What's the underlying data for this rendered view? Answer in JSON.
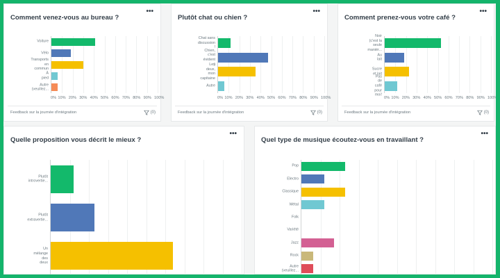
{
  "colors": {
    "frame": "#14b46b",
    "green": "#13b96b",
    "blue": "#5078b8",
    "yellow": "#f5c000",
    "teal": "#70c8d2",
    "orange": "#f58b57",
    "pink": "#d36093",
    "khaki": "#c9b87a",
    "red": "#df4d5a"
  },
  "common": {
    "more_icon": "•••",
    "footer_label": "Feedback sur la journée d'intégration",
    "filter_count": "(0)",
    "ticks": [
      "0%",
      "10%",
      "20%",
      "30%",
      "40%",
      "50%",
      "60%",
      "70%",
      "80%",
      "90%",
      "100%"
    ]
  },
  "cards": [
    {
      "title": "Comment venez-vous au bureau ?",
      "bars": [
        {
          "label": "Voiture",
          "value": 41,
          "color": "#13b96b"
        },
        {
          "label": "Vélo",
          "value": 18,
          "color": "#5078b8"
        },
        {
          "label": "Transports en commun",
          "value": 30,
          "color": "#f5c000"
        },
        {
          "label": "À pied",
          "value": 6,
          "color": "#70c8d2"
        },
        {
          "label": "Autre (veuillez...",
          "value": 6,
          "color": "#f58b57"
        }
      ]
    },
    {
      "title": "Plutôt chat ou chien ?",
      "bars": [
        {
          "label": "Chat sans discussion !",
          "value": 12,
          "color": "#13b96b"
        },
        {
          "label": "Chien, c'est évident :)",
          "value": 47,
          "color": "#5078b8"
        },
        {
          "label": "Les deux, mon capitaine",
          "value": 35,
          "color": "#f5c000"
        },
        {
          "label": "Autre",
          "value": 6,
          "color": "#70c8d2"
        }
      ]
    },
    {
      "title": "Comment prenez-vous votre café ?",
      "bars": [
        {
          "label": "Noir (c'est la seule maniér...",
          "value": 53,
          "color": "#13b96b"
        },
        {
          "label": "Au lait",
          "value": 18,
          "color": "#5078b8"
        },
        {
          "label": "Sucre et lait",
          "value": 23,
          "color": "#f5c000"
        },
        {
          "label": "Pas de café pour moi!",
          "value": 12,
          "color": "#70c8d2"
        }
      ]
    },
    {
      "title": "Quelle proposition vous décrit le mieux ?",
      "bars": [
        {
          "label": "Plutôt introvertie...",
          "value": 12,
          "color": "#13b96b"
        },
        {
          "label": "Plutôt extravertie...",
          "value": 23,
          "color": "#5078b8"
        },
        {
          "label": "Un mélange des deux",
          "value": 64,
          "color": "#f5c000"
        }
      ]
    },
    {
      "title": "Quel type de musique écoutez-vous en travaillant ?",
      "bars": [
        {
          "label": "Pop",
          "value": 23,
          "color": "#13b96b"
        },
        {
          "label": "Electro",
          "value": 12,
          "color": "#5078b8"
        },
        {
          "label": "Classique",
          "value": 23,
          "color": "#f5c000"
        },
        {
          "label": "Métal",
          "value": 12,
          "color": "#70c8d2"
        },
        {
          "label": "Folk",
          "value": 0,
          "color": "#13b96b"
        },
        {
          "label": "Variété",
          "value": 0,
          "color": "#5078b8"
        },
        {
          "label": "Jazz",
          "value": 17,
          "color": "#d36093"
        },
        {
          "label": "Rock",
          "value": 6,
          "color": "#c9b87a"
        },
        {
          "label": "Autre (veuillez...",
          "value": 6,
          "color": "#df4d5a"
        }
      ]
    }
  ],
  "chart_data": [
    {
      "type": "bar",
      "orientation": "horizontal",
      "title": "Comment venez-vous au bureau ?",
      "categories": [
        "Voiture",
        "Vélo",
        "Transports en commun",
        "À pied",
        "Autre (veuillez..."
      ],
      "values": [
        41,
        18,
        30,
        6,
        6
      ],
      "xlabel": "",
      "ylabel": "",
      "xlim": [
        0,
        100
      ],
      "tick_labels": [
        "0%",
        "10%",
        "20%",
        "30%",
        "40%",
        "50%",
        "60%",
        "70%",
        "80%",
        "90%",
        "100%"
      ],
      "grid": true
    },
    {
      "type": "bar",
      "orientation": "horizontal",
      "title": "Plutôt chat ou chien ?",
      "categories": [
        "Chat sans discussion !",
        "Chien, c'est évident :)",
        "Les deux, mon capitaine",
        "Autre"
      ],
      "values": [
        12,
        47,
        35,
        6
      ],
      "xlim": [
        0,
        100
      ],
      "tick_labels": [
        "0%",
        "10%",
        "20%",
        "30%",
        "40%",
        "50%",
        "60%",
        "70%",
        "80%",
        "90%",
        "100%"
      ],
      "grid": true
    },
    {
      "type": "bar",
      "orientation": "horizontal",
      "title": "Comment prenez-vous votre café ?",
      "categories": [
        "Noir (c'est la seule maniér...",
        "Au lait",
        "Sucre et lait",
        "Pas de café pour moi!"
      ],
      "values": [
        53,
        18,
        23,
        12
      ],
      "xlim": [
        0,
        100
      ],
      "tick_labels": [
        "0%",
        "10%",
        "20%",
        "30%",
        "40%",
        "50%",
        "60%",
        "70%",
        "80%",
        "90%",
        "100%"
      ],
      "grid": true
    },
    {
      "type": "bar",
      "orientation": "horizontal",
      "title": "Quelle proposition vous décrit le mieux ?",
      "categories": [
        "Plutôt introvertie...",
        "Plutôt extravertie...",
        "Un mélange des deux"
      ],
      "values": [
        12,
        23,
        64
      ],
      "xlim": [
        0,
        100
      ],
      "grid": true
    },
    {
      "type": "bar",
      "orientation": "horizontal",
      "title": "Quel type de musique écoutez-vous en travaillant ?",
      "categories": [
        "Pop",
        "Electro",
        "Classique",
        "Métal",
        "Folk",
        "Variété",
        "Jazz",
        "Rock",
        "Autre (veuillez..."
      ],
      "values": [
        23,
        12,
        23,
        12,
        0,
        0,
        17,
        6,
        6
      ],
      "xlim": [
        0,
        100
      ],
      "grid": true
    }
  ]
}
